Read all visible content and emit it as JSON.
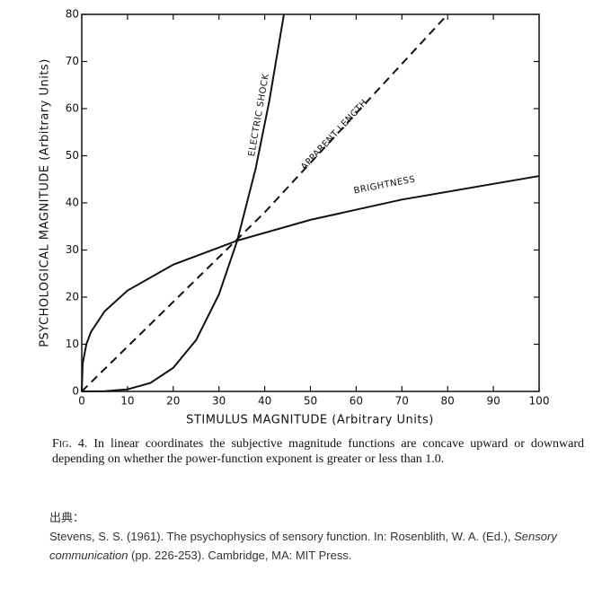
{
  "chart_data": {
    "type": "line",
    "xlabel": "STIMULUS MAGNITUDE (Arbitrary Units)",
    "ylabel": "PSYCHOLOGICAL MAGNITUDE (Arbitrary Units)",
    "xlim": [
      0,
      100
    ],
    "xticks": [
      0,
      10,
      20,
      30,
      40,
      50,
      60,
      70,
      80,
      90,
      100
    ],
    "ylim": [
      0,
      80
    ],
    "yticks": [
      0,
      10,
      20,
      30,
      40,
      50,
      60,
      70,
      80
    ],
    "grid": false,
    "series": [
      {
        "name": "ELECTRIC SHOCK",
        "color": "#111111",
        "dashed": false,
        "x": [
          0,
          5,
          10,
          15,
          20,
          25,
          30,
          34,
          38,
          41,
          44.2
        ],
        "values": [
          0,
          0.04,
          0.44,
          1.8,
          5.0,
          10.9,
          20.6,
          32,
          47.2,
          61.6,
          80
        ]
      },
      {
        "name": "APPARENT LENGTH",
        "color": "#111111",
        "dashed": true,
        "x": [
          0,
          20,
          40,
          60,
          80
        ],
        "values": [
          0,
          19,
          38,
          59,
          80
        ]
      },
      {
        "name": "BRIGHTNESS",
        "color": "#111111",
        "dashed": false,
        "x": [
          0,
          0.2,
          1,
          2,
          5,
          10,
          20,
          34,
          50,
          70,
          100
        ],
        "values": [
          0,
          5.9,
          10,
          12.6,
          17,
          21.4,
          26.9,
          32,
          36.4,
          40.7,
          45.7
        ]
      }
    ]
  },
  "caption": {
    "figure": "Fig. 4.",
    "text": "In linear coordinates the subjective magnitude functions are concave upward or downward depending on whether the power-function exponent is greater or less than 1.0."
  },
  "source": {
    "heading": "出典：",
    "before": "Stevens, S. S. (1961). The psychophysics of sensory function. In: Rosenblith, W. A. (Ed.), ",
    "title": "Sensory communication",
    "after": " (pp. 226-253). Cambridge, MA: MIT Press."
  }
}
